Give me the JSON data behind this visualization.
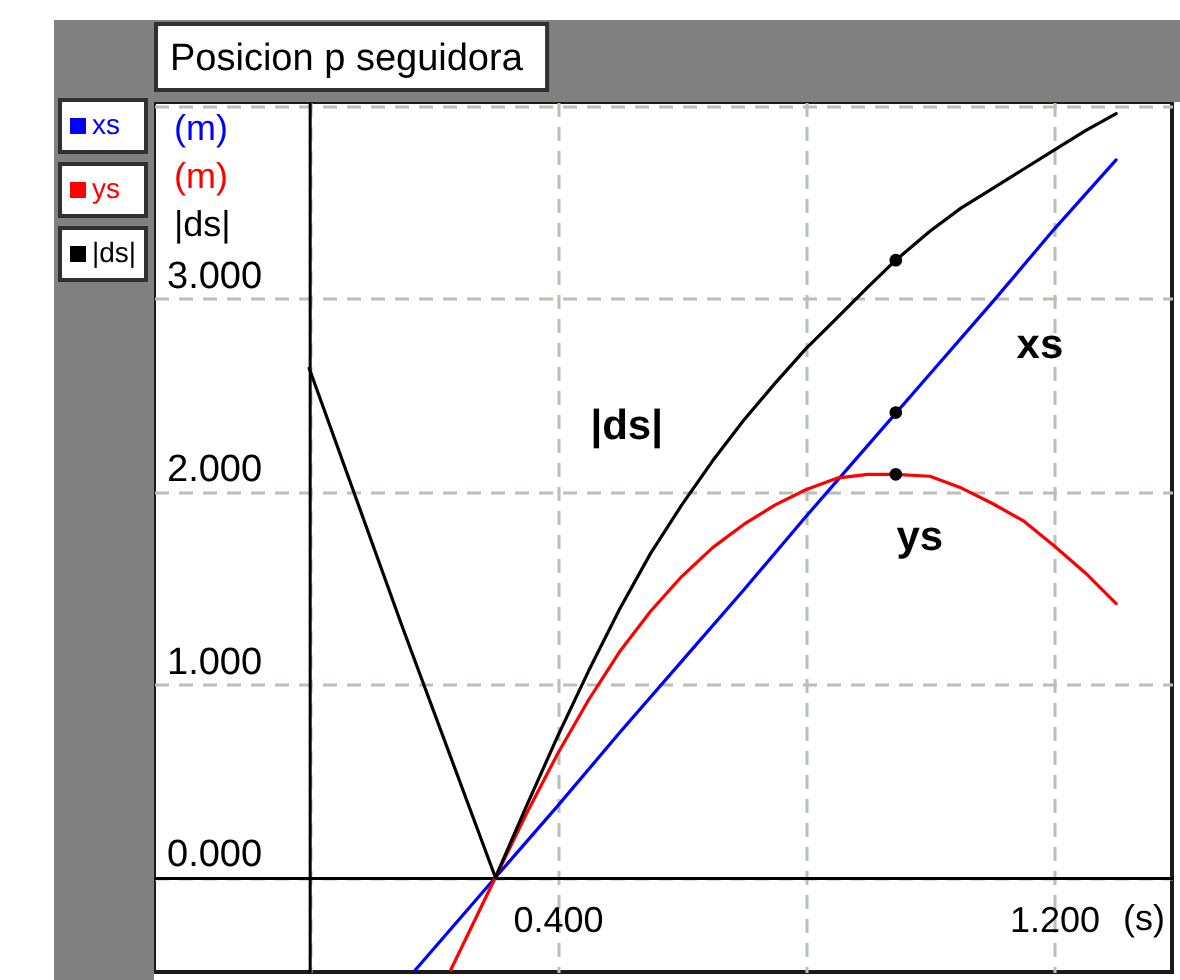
{
  "chart_data": {
    "type": "line",
    "title": "Posicion p seguidora",
    "xlabel": "(s)",
    "annotations": [
      "(m)",
      "(m)",
      "|ds|"
    ],
    "xlim": [
      -0.25,
      1.39
    ],
    "ylim": [
      -0.49,
      4.02
    ],
    "xticks": [
      {
        "value": 0,
        "label": null
      },
      {
        "value": 0.4,
        "label": "0.400"
      },
      {
        "value": 0.8,
        "label": null
      },
      {
        "value": 1.2,
        "label": "1.200"
      }
    ],
    "yticks": [
      {
        "value": 0,
        "label": "0.000"
      },
      {
        "value": 1,
        "label": "1.000"
      },
      {
        "value": 2,
        "label": "2.000"
      },
      {
        "value": 3,
        "label": "3.000"
      },
      {
        "value": 4,
        "label": null
      }
    ],
    "grid": true,
    "legend": "left",
    "series": [
      {
        "name": "xs",
        "color": "#0000ff",
        "x": [
          0.171,
          0.3,
          0.4,
          0.5,
          0.6,
          0.7,
          0.8,
          0.9,
          1.0,
          1.1,
          1.2,
          1.3
        ],
        "values": [
          -0.48,
          0,
          0.37,
          0.75,
          1.12,
          1.49,
          1.87,
          2.24,
          2.61,
          2.98,
          3.36,
          3.72
        ]
      },
      {
        "name": "ys",
        "color": "#ff0000",
        "x": [
          0.228,
          0.3,
          0.35,
          0.4,
          0.45,
          0.5,
          0.55,
          0.6,
          0.65,
          0.7,
          0.75,
          0.8,
          0.85,
          0.9,
          0.945,
          1.0,
          1.05,
          1.1,
          1.15,
          1.2,
          1.25,
          1.3
        ],
        "values": [
          -0.48,
          0,
          0.33,
          0.64,
          0.92,
          1.17,
          1.38,
          1.56,
          1.71,
          1.83,
          1.93,
          2.01,
          2.07,
          2.09,
          2.09,
          2.08,
          2.02,
          1.94,
          1.85,
          1.72,
          1.58,
          1.42
        ]
      },
      {
        "name": "|ds|",
        "color": "#000000",
        "x": [
          0,
          0.15,
          0.3,
          0.35,
          0.4,
          0.45,
          0.5,
          0.55,
          0.6,
          0.65,
          0.7,
          0.75,
          0.8,
          0.85,
          0.9,
          0.945,
          1.0,
          1.05,
          1.1,
          1.15,
          1.2,
          1.25,
          1.3
        ],
        "values": [
          2.64,
          1.3,
          0,
          0.37,
          0.73,
          1.07,
          1.39,
          1.68,
          1.93,
          2.16,
          2.37,
          2.56,
          2.74,
          2.9,
          3.06,
          3.2,
          3.35,
          3.47,
          3.57,
          3.67,
          3.77,
          3.87,
          3.96
        ]
      },
      {
        "type": "scatter",
        "color": "#000000",
        "x": [
          0.945,
          0.945,
          0.945
        ],
        "values": [
          3.2,
          2.41,
          2.09
        ]
      }
    ]
  }
}
